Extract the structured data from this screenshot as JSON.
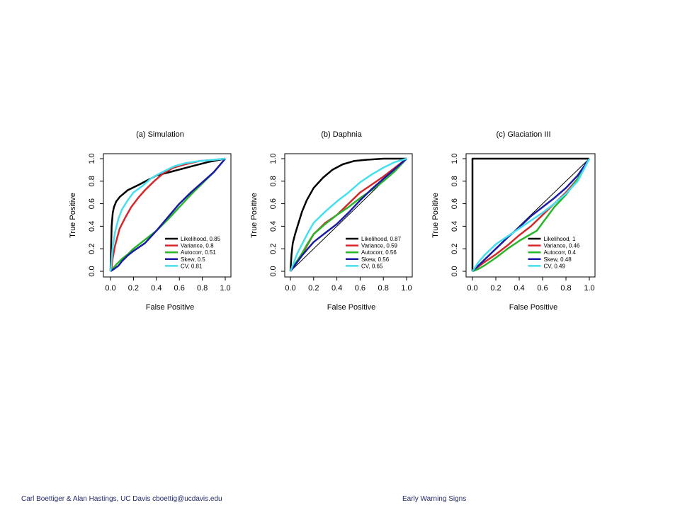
{
  "footer": {
    "left": "Carl Boettiger & Alan Hastings, UC Davis cboettig@ucdavis.edu",
    "right": "Early Warning Signs"
  },
  "colors": {
    "Likelihood": "#000000",
    "Variance": "#d7262b",
    "Autocorr": "#29b52a",
    "Skew": "#1a1aa6",
    "CV": "#42e0f0"
  },
  "chart_data": [
    {
      "type": "line",
      "title": "(a) Simulation",
      "xlabel": "False Positive",
      "ylabel": "True Positive",
      "xlim": [
        0,
        1
      ],
      "ylim": [
        0,
        1
      ],
      "xticks": [
        "0.0",
        "0.2",
        "0.4",
        "0.6",
        "0.8",
        "1.0"
      ],
      "yticks": [
        "0.0",
        "0.2",
        "0.4",
        "0.6",
        "0.8",
        "1.0"
      ],
      "diagonal": false,
      "legend_position": "bottom-right",
      "series": [
        {
          "name": "Likelihood, 0.85",
          "color": "#000000",
          "x": [
            0,
            0.005,
            0.01,
            0.02,
            0.03,
            0.05,
            0.08,
            0.15,
            0.25,
            0.4,
            0.55,
            0.7,
            0.85,
            1.0
          ],
          "y": [
            0,
            0.2,
            0.4,
            0.52,
            0.57,
            0.62,
            0.66,
            0.72,
            0.77,
            0.85,
            0.89,
            0.93,
            0.97,
            1.0
          ]
        },
        {
          "name": "Variance, 0.8",
          "color": "#d7262b",
          "x": [
            0,
            0.01,
            0.02,
            0.04,
            0.08,
            0.13,
            0.18,
            0.24,
            0.3,
            0.38,
            0.46,
            0.55,
            0.65,
            0.78,
            0.9,
            1.0
          ],
          "y": [
            0,
            0.04,
            0.12,
            0.23,
            0.38,
            0.48,
            0.57,
            0.65,
            0.72,
            0.8,
            0.87,
            0.92,
            0.95,
            0.98,
            0.99,
            1.0
          ]
        },
        {
          "name": "Autocorr, 0.51",
          "color": "#29b52a",
          "x": [
            0,
            0.05,
            0.1,
            0.15,
            0.2,
            0.3,
            0.4,
            0.5,
            0.6,
            0.7,
            0.8,
            0.9,
            1.0
          ],
          "y": [
            0,
            0.06,
            0.11,
            0.15,
            0.2,
            0.28,
            0.36,
            0.46,
            0.57,
            0.68,
            0.78,
            0.88,
            1.0
          ]
        },
        {
          "name": "Skew, 0.5",
          "color": "#1a1aa6",
          "x": [
            0,
            0.03,
            0.07,
            0.1,
            0.15,
            0.2,
            0.3,
            0.4,
            0.5,
            0.6,
            0.7,
            0.8,
            0.9,
            1.0
          ],
          "y": [
            0,
            0.02,
            0.05,
            0.09,
            0.14,
            0.18,
            0.25,
            0.36,
            0.48,
            0.6,
            0.7,
            0.79,
            0.88,
            1.0
          ]
        },
        {
          "name": "CV, 0.81",
          "color": "#42e0f0",
          "x": [
            0,
            0.01,
            0.02,
            0.04,
            0.07,
            0.1,
            0.15,
            0.2,
            0.28,
            0.36,
            0.45,
            0.55,
            0.65,
            0.78,
            0.9,
            1.0
          ],
          "y": [
            0,
            0.1,
            0.22,
            0.35,
            0.47,
            0.55,
            0.63,
            0.7,
            0.76,
            0.83,
            0.88,
            0.93,
            0.96,
            0.98,
            0.99,
            1.0
          ]
        }
      ]
    },
    {
      "type": "line",
      "title": "(b) Daphnia",
      "xlabel": "False Positive",
      "ylabel": "True Positive",
      "xlim": [
        0,
        1
      ],
      "ylim": [
        0,
        1
      ],
      "xticks": [
        "0.0",
        "0.2",
        "0.4",
        "0.6",
        "0.8",
        "1.0"
      ],
      "yticks": [
        "0.0",
        "0.2",
        "0.4",
        "0.6",
        "0.8",
        "1.0"
      ],
      "diagonal": true,
      "legend_position": "bottom-right",
      "series": [
        {
          "name": "Likelihood, 0.87",
          "color": "#000000",
          "x": [
            0,
            0.01,
            0.02,
            0.04,
            0.07,
            0.1,
            0.14,
            0.2,
            0.28,
            0.36,
            0.45,
            0.55,
            0.65,
            0.8,
            1.0
          ],
          "y": [
            0,
            0.15,
            0.25,
            0.33,
            0.43,
            0.53,
            0.63,
            0.74,
            0.83,
            0.9,
            0.95,
            0.98,
            0.99,
            1.0,
            1.0
          ]
        },
        {
          "name": "Variance, 0.59",
          "color": "#d7262b",
          "x": [
            0,
            0.05,
            0.1,
            0.15,
            0.2,
            0.25,
            0.3,
            0.4,
            0.5,
            0.6,
            0.7,
            0.8,
            0.9,
            1.0
          ],
          "y": [
            0,
            0.08,
            0.15,
            0.24,
            0.33,
            0.38,
            0.43,
            0.5,
            0.6,
            0.7,
            0.77,
            0.84,
            0.92,
            1.0
          ]
        },
        {
          "name": "Autocorr, 0.56",
          "color": "#29b52a",
          "x": [
            0,
            0.05,
            0.1,
            0.15,
            0.2,
            0.3,
            0.4,
            0.5,
            0.6,
            0.7,
            0.8,
            0.9,
            1.0
          ],
          "y": [
            0,
            0.08,
            0.16,
            0.25,
            0.33,
            0.42,
            0.5,
            0.57,
            0.65,
            0.72,
            0.8,
            0.89,
            1.0
          ]
        },
        {
          "name": "Skew, 0.56",
          "color": "#1a1aa6",
          "x": [
            0,
            0.05,
            0.1,
            0.15,
            0.2,
            0.3,
            0.4,
            0.5,
            0.6,
            0.7,
            0.8,
            0.9,
            1.0
          ],
          "y": [
            0,
            0.07,
            0.14,
            0.2,
            0.26,
            0.34,
            0.42,
            0.52,
            0.63,
            0.73,
            0.82,
            0.91,
            1.0
          ]
        },
        {
          "name": "CV, 0.65",
          "color": "#42e0f0",
          "x": [
            0,
            0.03,
            0.06,
            0.1,
            0.15,
            0.2,
            0.3,
            0.4,
            0.5,
            0.6,
            0.7,
            0.8,
            0.9,
            1.0
          ],
          "y": [
            0,
            0.08,
            0.16,
            0.24,
            0.34,
            0.43,
            0.53,
            0.62,
            0.7,
            0.79,
            0.86,
            0.92,
            0.97,
            1.0
          ]
        }
      ]
    },
    {
      "type": "line",
      "title": "(c) Glaciation III",
      "xlabel": "False Positive",
      "ylabel": "True Positive",
      "xlim": [
        0,
        1
      ],
      "ylim": [
        0,
        1
      ],
      "xticks": [
        "0.0",
        "0.2",
        "0.4",
        "0.6",
        "0.8",
        "1.0"
      ],
      "yticks": [
        "0.0",
        "0.2",
        "0.4",
        "0.6",
        "0.8",
        "1.0"
      ],
      "diagonal": true,
      "legend_position": "bottom-right",
      "series": [
        {
          "name": "Likelihood, 1",
          "color": "#000000",
          "x": [
            0,
            0,
            1.0
          ],
          "y": [
            0,
            1.0,
            1.0
          ]
        },
        {
          "name": "Variance, 0.46",
          "color": "#d7262b",
          "x": [
            0,
            0.1,
            0.2,
            0.3,
            0.4,
            0.5,
            0.6,
            0.7,
            0.8,
            0.9,
            1.0
          ],
          "y": [
            0,
            0.08,
            0.15,
            0.23,
            0.32,
            0.4,
            0.5,
            0.6,
            0.7,
            0.82,
            1.0
          ]
        },
        {
          "name": "Autocorr, 0.4",
          "color": "#29b52a",
          "x": [
            0,
            0.05,
            0.1,
            0.2,
            0.3,
            0.4,
            0.5,
            0.55,
            0.6,
            0.65,
            0.7,
            0.8,
            0.9,
            1.0
          ],
          "y": [
            0,
            0.02,
            0.05,
            0.12,
            0.2,
            0.27,
            0.33,
            0.36,
            0.43,
            0.5,
            0.57,
            0.68,
            0.82,
            1.0
          ]
        },
        {
          "name": "Skew, 0.48",
          "color": "#1a1aa6",
          "x": [
            0,
            0.1,
            0.2,
            0.3,
            0.4,
            0.5,
            0.6,
            0.7,
            0.8,
            0.9,
            1.0
          ],
          "y": [
            0,
            0.1,
            0.2,
            0.3,
            0.39,
            0.49,
            0.57,
            0.65,
            0.74,
            0.85,
            1.0
          ]
        },
        {
          "name": "CV, 0.49",
          "color": "#42e0f0",
          "x": [
            0,
            0.05,
            0.1,
            0.2,
            0.3,
            0.4,
            0.5,
            0.6,
            0.7,
            0.8,
            0.9,
            1.0
          ],
          "y": [
            0,
            0.08,
            0.14,
            0.24,
            0.31,
            0.38,
            0.45,
            0.52,
            0.6,
            0.69,
            0.8,
            1.0
          ]
        }
      ]
    }
  ]
}
